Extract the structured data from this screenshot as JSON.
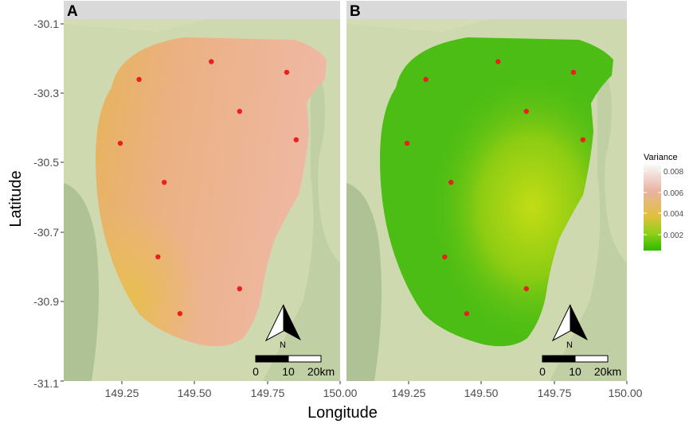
{
  "figure": {
    "x_axis_title": "Longitude",
    "y_axis_title": "Latitude",
    "x_ticks": [
      "149.25",
      "149.50",
      "149.75",
      "150.00"
    ],
    "y_ticks": [
      "-30.1",
      "-30.3",
      "-30.5",
      "-30.7",
      "-30.9",
      "-31.1"
    ],
    "panels": [
      {
        "letter": "A",
        "scale_bar": {
          "labels": [
            "0",
            "10",
            "20km"
          ]
        },
        "north_arrow": {
          "label": "N"
        }
      },
      {
        "letter": "B",
        "scale_bar": {
          "labels": [
            "0",
            "10",
            "20km"
          ]
        },
        "north_arrow": {
          "label": "N"
        }
      }
    ],
    "legend": {
      "title": "Variance",
      "labels": [
        "0.008",
        "0.006",
        "0.004",
        "0.002"
      ],
      "colors": [
        "#f5f3f3",
        "#eab3a0",
        "#e0c03b",
        "#8ed01a",
        "#2fb800"
      ]
    },
    "colors": {
      "basemap": "#cfd9b0",
      "panel_a_fill": "#ecb08a",
      "panel_a_fill_left": "#e9b25c",
      "panel_b_fill": "#4cbd14",
      "panel_b_fill_yellow": "#b9d813",
      "point": "#e8201e"
    }
  },
  "chart_data": {
    "type": "scatter",
    "title": "",
    "xlabel": "Longitude",
    "ylabel": "Latitude",
    "xlim": [
      149.12,
      150.0
    ],
    "ylim": [
      -31.1,
      -30.08
    ],
    "legend_title": "Variance",
    "legend_position": "right",
    "points": [
      {
        "x": 149.36,
        "y": -30.25
      },
      {
        "x": 149.59,
        "y": -30.2
      },
      {
        "x": 149.83,
        "y": -30.23
      },
      {
        "x": 149.68,
        "y": -30.34
      },
      {
        "x": 149.86,
        "y": -30.42
      },
      {
        "x": 149.3,
        "y": -30.43
      },
      {
        "x": 149.44,
        "y": -30.54
      },
      {
        "x": 149.42,
        "y": -30.75
      },
      {
        "x": 149.68,
        "y": -30.84
      },
      {
        "x": 149.49,
        "y": -30.91
      }
    ]
  }
}
